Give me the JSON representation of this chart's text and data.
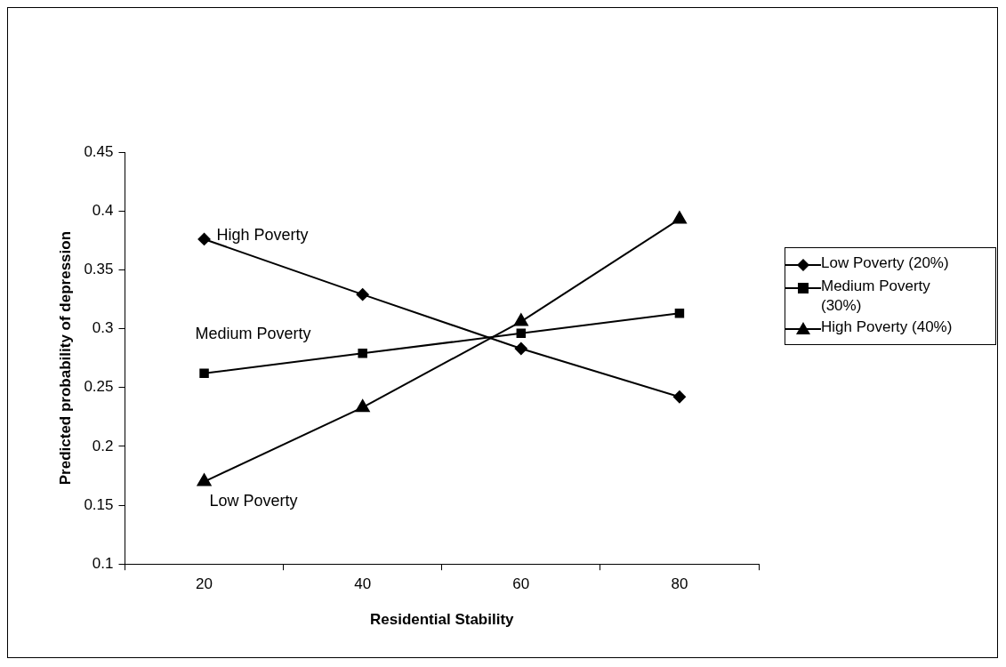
{
  "chart_data": {
    "type": "line",
    "xlabel": "Residential Stability",
    "ylabel": "Predicted probability of depression",
    "categories": [
      "20",
      "40",
      "60",
      "80"
    ],
    "series": [
      {
        "name": "Low Poverty (20%)",
        "color": "#000000",
        "marker": "diamond",
        "values": [
          0.376,
          0.329,
          0.283,
          0.242
        ]
      },
      {
        "name": "Medium Poverty (30%)",
        "color": "#000000",
        "marker": "square",
        "values": [
          0.262,
          0.279,
          0.296,
          0.313
        ]
      },
      {
        "name": "High Poverty (40%)",
        "color": "#000000",
        "marker": "triangle",
        "values": [
          0.17,
          0.233,
          0.306,
          0.393
        ]
      }
    ],
    "ylim": [
      0.1,
      0.45
    ],
    "yticks": [
      0.1,
      0.15,
      0.2,
      0.25,
      0.3,
      0.35,
      0.4,
      0.45
    ],
    "grid": false,
    "legend": "right",
    "line_style": "solid",
    "annotations": [
      "High Poverty",
      "Medium Poverty",
      "Low Poverty"
    ]
  }
}
